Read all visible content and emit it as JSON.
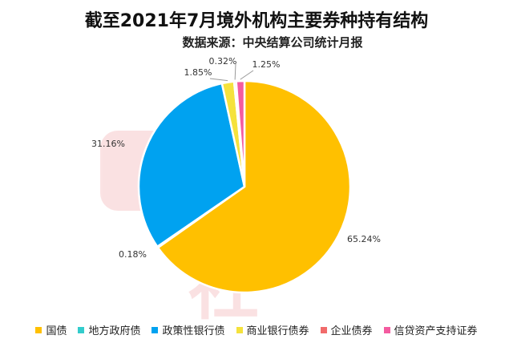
{
  "chart_data": {
    "type": "pie",
    "title": "截至2021年7月境外机构主要券种持有结构",
    "subtitle": "数据来源：中央结算公司统计月报",
    "categories": [
      "国债",
      "地方政府债",
      "政策性银行债",
      "商业银行债券",
      "企业债券",
      "信贷资产支持证券"
    ],
    "values": [
      65.24,
      0.18,
      31.16,
      1.85,
      0.32,
      1.25
    ],
    "labels": [
      "65.24%",
      "0.18%",
      "31.16%",
      "1.85%",
      "0.32%",
      "1.25%"
    ],
    "colors": [
      "#FFC000",
      "#33CCCC",
      "#00A2F0",
      "#F5E23C",
      "#F16B6B",
      "#F45BA0"
    ],
    "legend_position": "bottom",
    "start_angle_deg": 0,
    "direction": "clockwise"
  },
  "watermark": {
    "text": "财联社"
  }
}
